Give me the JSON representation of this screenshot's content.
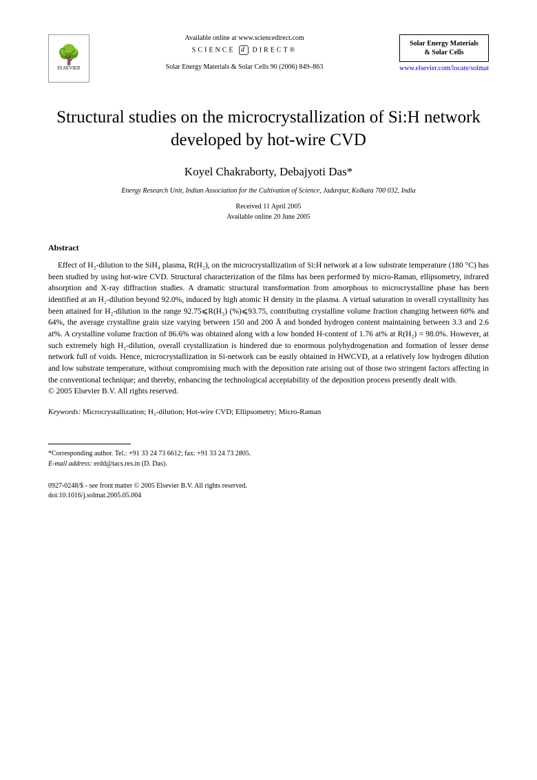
{
  "header": {
    "available_text": "Available online at www.sciencedirect.com",
    "science_direct_left": "SCIENCE",
    "science_direct_right": "DIRECT®",
    "journal_ref": "Solar Energy Materials & Solar Cells 90 (2006) 849–863",
    "publisher_name": "ELSEVIER",
    "journal_box_line1": "Solar Energy Materials",
    "journal_box_line2": "& Solar Cells",
    "journal_url": "www.elsevier.com/locate/solmat"
  },
  "title": "Structural studies on the microcrystallization of Si:H network developed by hot-wire CVD",
  "authors": "Koyel Chakraborty, Debajyoti Das*",
  "affiliation": "Energy Research Unit, Indian Association for the Cultivation of Science, Jadavpur, Kolkata 700 032, India",
  "dates": {
    "received": "Received 11 April 2005",
    "online": "Available online 20 June 2005"
  },
  "abstract": {
    "heading": "Abstract",
    "body": "Effect of H₂-dilution to the SiH₄ plasma, R(H₂), on the microcrystallization of Si:H network at a low substrate temperature (180 °C) has been studied by using hot-wire CVD. Structural characterization of the films has been performed by micro-Raman, ellipsometry, infrared absorption and X-ray diffraction studies. A dramatic structural transformation from amorphous to microcrystalline phase has been identified at an H₂-dilution beyond 92.0%, induced by high atomic H density in the plasma. A virtual saturation in overall crystallinity has been attained for H₂-dilution in the range 92.75⩽R(H₂) (%)⩽93.75, contributing crystalline volume fraction changing between 60% and 64%, the average crystalline grain size varying between 150 and 200 Å and bonded hydrogen content maintaining between 3.3 and 2.6 at%. A crystalline volume fraction of 86.6% was obtained along with a low bonded H-content of 1.76 at% at R(H₂) = 98.0%. However, at such extremely high H₂-dilution, overall crystallization is hindered due to enormous polyhydrogenation and formation of lesser dense network full of voids. Hence, microcrystallization in Si-network can be easily obtained in HWCVD, at a relatively low hydrogen dilution and low substrate temperature, without compromising much with the deposition rate arising out of those two stringent factors affecting in the conventional technique; and thereby, enhancing the technological acceptability of the deposition process presently dealt with.",
    "copyright": "© 2005 Elsevier B.V. All rights reserved."
  },
  "keywords": {
    "label": "Keywords:",
    "list": "Microcrystallization; H₂-dilution; Hot-wire CVD; Ellipsometry; Micro-Raman"
  },
  "footnote": {
    "corresponding": "*Corresponding author. Tel.: +91 33 24 73 6612; fax: +91 33 24 73 2805.",
    "email_label": "E-mail address:",
    "email": "erdd@iacs.res.in (D. Das)."
  },
  "footer": {
    "issn": "0927-0248/$ - see front matter © 2005 Elsevier B.V. All rights reserved.",
    "doi": "doi:10.1016/j.solmat.2005.05.004"
  }
}
